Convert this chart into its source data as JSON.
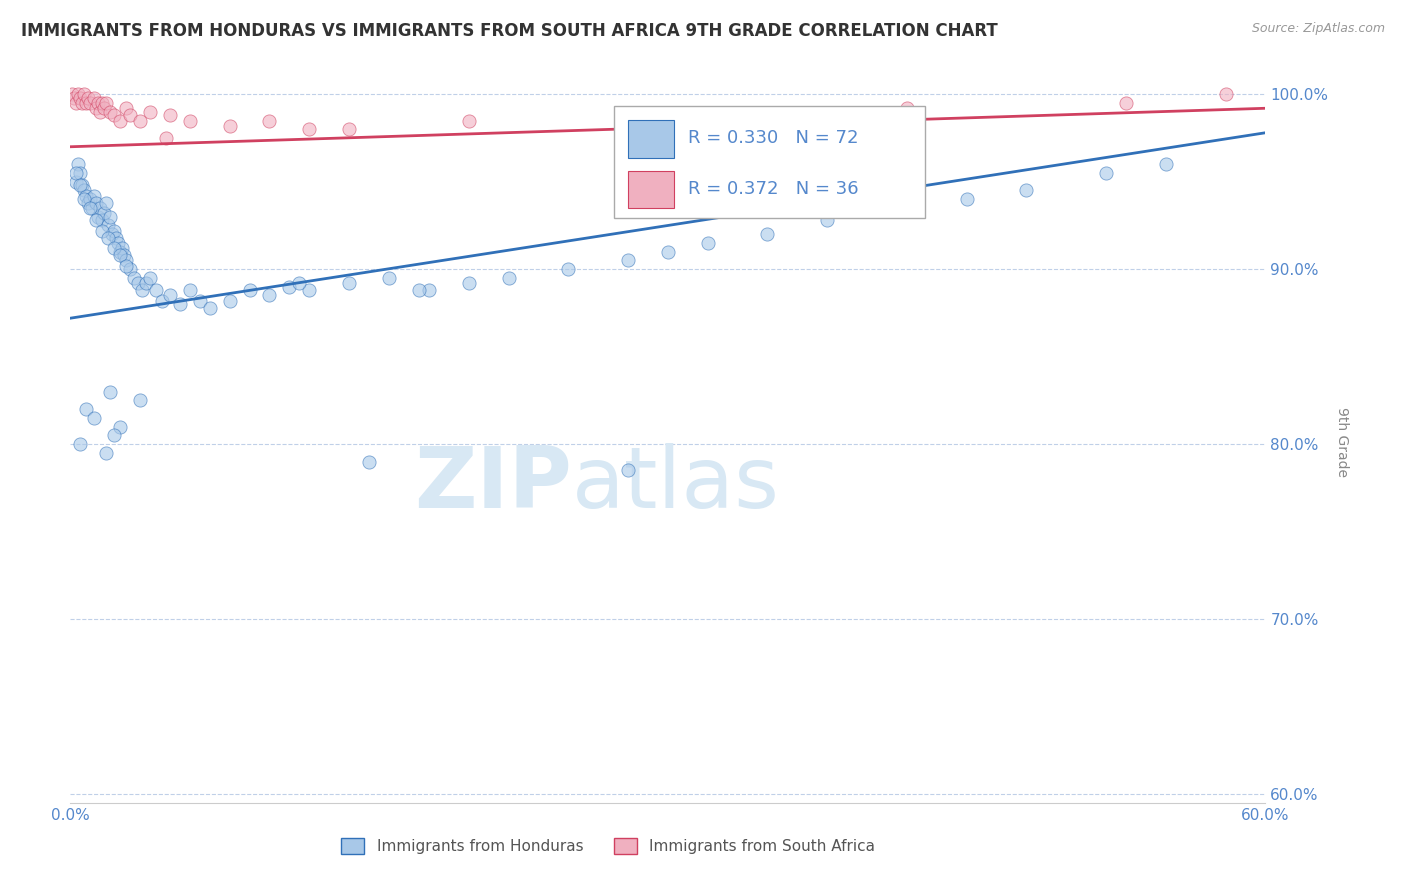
{
  "title": "IMMIGRANTS FROM HONDURAS VS IMMIGRANTS FROM SOUTH AFRICA 9TH GRADE CORRELATION CHART",
  "source": "Source: ZipAtlas.com",
  "ylabel": "9th Grade",
  "xlim": [
    0.0,
    0.6
  ],
  "ylim": [
    0.595,
    1.008
  ],
  "yticks": [
    0.6,
    0.7,
    0.8,
    0.9,
    1.0
  ],
  "xticks": [
    0.0,
    0.1,
    0.2,
    0.3,
    0.4,
    0.5,
    0.6
  ],
  "ytick_labels": [
    "60.0%",
    "70.0%",
    "80.0%",
    "90.0%",
    "100.0%"
  ],
  "legend_r_honduras": "R = 0.330",
  "legend_n_honduras": "N = 72",
  "legend_r_southafrica": "R = 0.372",
  "legend_n_southafrica": "N = 36",
  "color_honduras": "#a8c8e8",
  "color_southafrica": "#f0b0c0",
  "color_trend_honduras": "#3070b8",
  "color_trend_southafrica": "#d04060",
  "color_axis_labels": "#5588cc",
  "color_grid": "#c0d0e8",
  "watermark_zip": "ZIP",
  "watermark_atlas": "atlas",
  "watermark_color": "#d8e8f4",
  "background": "#ffffff",
  "honduras_x": [
    0.003,
    0.004,
    0.005,
    0.006,
    0.007,
    0.008,
    0.009,
    0.01,
    0.011,
    0.012,
    0.013,
    0.014,
    0.015,
    0.016,
    0.017,
    0.018,
    0.019,
    0.02,
    0.021,
    0.022,
    0.023,
    0.024,
    0.025,
    0.026,
    0.027,
    0.028,
    0.03,
    0.032,
    0.034,
    0.036,
    0.038,
    0.04,
    0.043,
    0.046,
    0.05,
    0.055,
    0.06,
    0.065,
    0.07,
    0.08,
    0.09,
    0.1,
    0.11,
    0.12,
    0.14,
    0.16,
    0.18,
    0.2,
    0.22,
    0.25,
    0.28,
    0.3,
    0.32,
    0.35,
    0.38,
    0.42,
    0.45,
    0.48,
    0.52,
    0.55,
    0.003,
    0.005,
    0.007,
    0.01,
    0.013,
    0.016,
    0.019,
    0.022,
    0.025,
    0.028,
    0.115,
    0.175
  ],
  "honduras_y": [
    0.95,
    0.96,
    0.955,
    0.948,
    0.945,
    0.942,
    0.938,
    0.94,
    0.935,
    0.942,
    0.938,
    0.93,
    0.935,
    0.928,
    0.932,
    0.938,
    0.925,
    0.93,
    0.92,
    0.922,
    0.918,
    0.915,
    0.91,
    0.912,
    0.908,
    0.905,
    0.9,
    0.895,
    0.892,
    0.888,
    0.892,
    0.895,
    0.888,
    0.882,
    0.885,
    0.88,
    0.888,
    0.882,
    0.878,
    0.882,
    0.888,
    0.885,
    0.89,
    0.888,
    0.892,
    0.895,
    0.888,
    0.892,
    0.895,
    0.9,
    0.905,
    0.91,
    0.915,
    0.92,
    0.928,
    0.935,
    0.94,
    0.945,
    0.955,
    0.96,
    0.955,
    0.948,
    0.94,
    0.935,
    0.928,
    0.922,
    0.918,
    0.912,
    0.908,
    0.902,
    0.892,
    0.888
  ],
  "honduras_y_outliers": [
    0.8,
    0.82,
    0.83,
    0.81,
    0.825,
    0.795,
    0.815,
    0.805,
    0.79,
    0.785
  ],
  "honduras_x_outliers": [
    0.005,
    0.008,
    0.02,
    0.025,
    0.035,
    0.018,
    0.012,
    0.022,
    0.15,
    0.28
  ],
  "southafrica_x": [
    0.001,
    0.002,
    0.003,
    0.004,
    0.005,
    0.006,
    0.007,
    0.008,
    0.009,
    0.01,
    0.012,
    0.013,
    0.014,
    0.015,
    0.016,
    0.017,
    0.018,
    0.02,
    0.022,
    0.025,
    0.028,
    0.03,
    0.035,
    0.04,
    0.05,
    0.06,
    0.08,
    0.1,
    0.14,
    0.2,
    0.3,
    0.42,
    0.53,
    0.58,
    0.12,
    0.048
  ],
  "southafrica_y": [
    1.0,
    0.998,
    0.995,
    1.0,
    0.998,
    0.995,
    1.0,
    0.995,
    0.998,
    0.995,
    0.998,
    0.992,
    0.995,
    0.99,
    0.995,
    0.992,
    0.995,
    0.99,
    0.988,
    0.985,
    0.992,
    0.988,
    0.985,
    0.99,
    0.988,
    0.985,
    0.982,
    0.985,
    0.98,
    0.985,
    0.988,
    0.992,
    0.995,
    1.0,
    0.98,
    0.975
  ],
  "trend_honduras_x0": 0.0,
  "trend_honduras_y0": 0.872,
  "trend_honduras_x1": 0.6,
  "trend_honduras_y1": 0.978,
  "trend_sa_x0": 0.0,
  "trend_sa_y0": 0.97,
  "trend_sa_x1": 0.6,
  "trend_sa_y1": 0.992,
  "figsize": [
    14.06,
    8.92
  ],
  "dpi": 100
}
